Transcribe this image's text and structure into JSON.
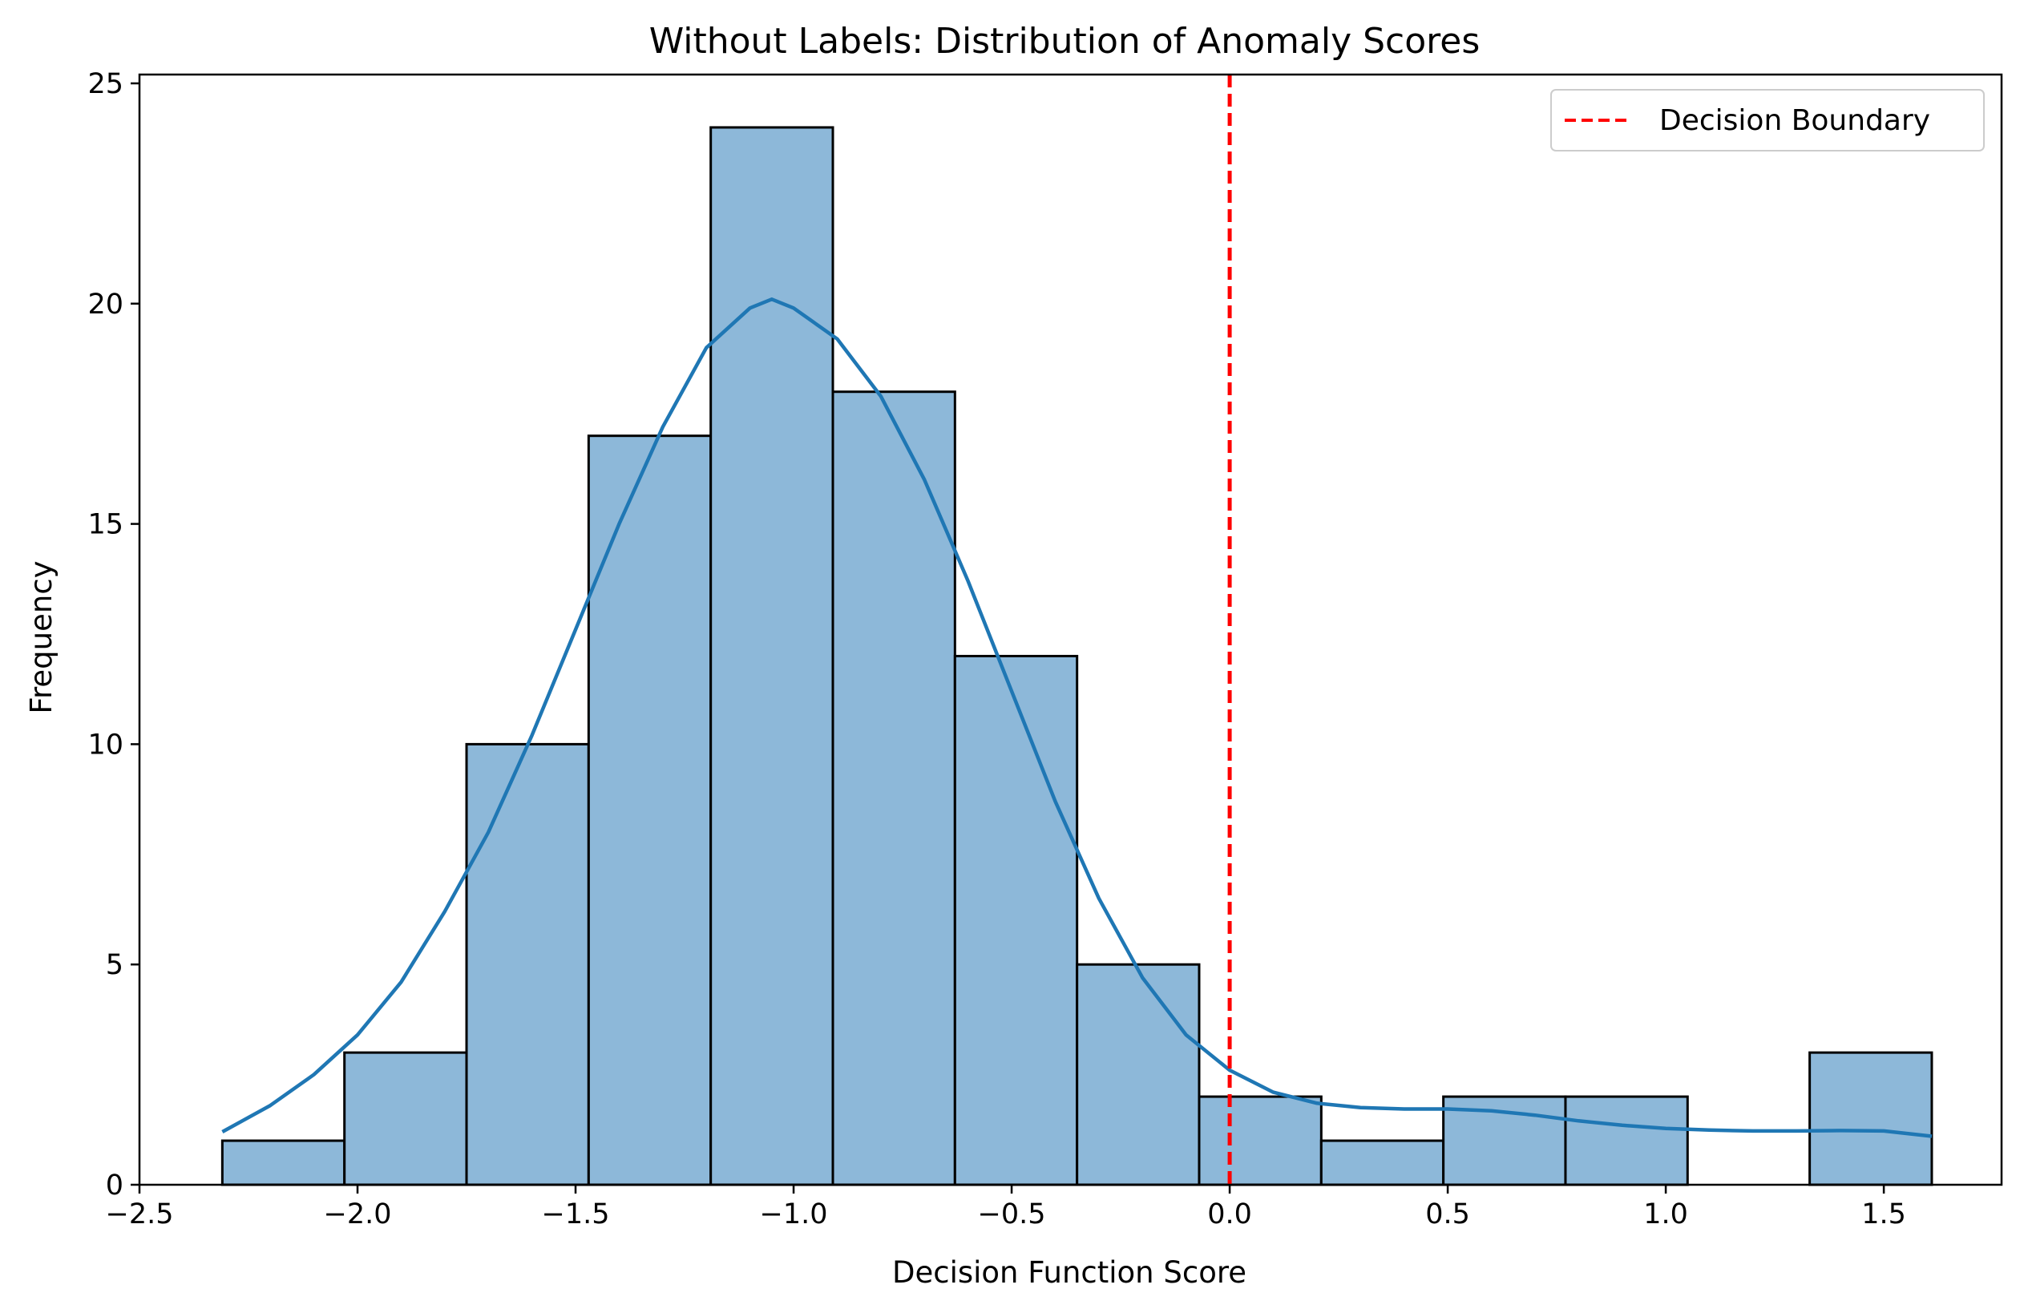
{
  "chart_data": {
    "type": "bar",
    "title": "Without Labels: Distribution of Anomaly Scores",
    "xlabel": "Decision Function Score",
    "ylabel": "Frequency",
    "xlim": [
      -2.5,
      1.77
    ],
    "ylim": [
      0,
      25.2
    ],
    "x_ticks": [
      -2.5,
      -2.0,
      -1.5,
      -1.0,
      -0.5,
      0.0,
      0.5,
      1.0,
      1.5
    ],
    "x_tick_labels": [
      "−2.5",
      "−2.0",
      "−1.5",
      "−1.0",
      "−0.5",
      "0.0",
      "0.5",
      "1.0",
      "1.5"
    ],
    "y_ticks": [
      0,
      5,
      10,
      15,
      20,
      25
    ],
    "y_tick_labels": [
      "0",
      "5",
      "10",
      "15",
      "20",
      "25"
    ],
    "grid": false,
    "bin_edges": [
      -2.31,
      -2.03,
      -1.75,
      -1.47,
      -1.19,
      -0.91,
      -0.63,
      -0.35,
      -0.07,
      0.21,
      0.49,
      0.77,
      1.05,
      1.33,
      1.61
    ],
    "counts": [
      1,
      3,
      10,
      17,
      24,
      18,
      12,
      5,
      2,
      1,
      2,
      2,
      0,
      3
    ],
    "bar_color": "#8db8d9",
    "bar_edge_color": "#000000",
    "kde": {
      "color": "#1f77b4",
      "x": [
        -2.31,
        -2.2,
        -2.1,
        -2.0,
        -1.9,
        -1.8,
        -1.7,
        -1.6,
        -1.5,
        -1.4,
        -1.3,
        -1.2,
        -1.1,
        -1.05,
        -1.0,
        -0.9,
        -0.8,
        -0.7,
        -0.6,
        -0.5,
        -0.4,
        -0.3,
        -0.2,
        -0.1,
        0.0,
        0.1,
        0.2,
        0.3,
        0.4,
        0.5,
        0.6,
        0.7,
        0.8,
        0.9,
        1.0,
        1.1,
        1.2,
        1.3,
        1.4,
        1.5,
        1.61
      ],
      "y": [
        1.2,
        1.8,
        2.5,
        3.4,
        4.6,
        6.2,
        8.0,
        10.2,
        12.6,
        15.0,
        17.2,
        19.0,
        19.9,
        20.1,
        19.9,
        19.2,
        17.9,
        16.0,
        13.7,
        11.2,
        8.7,
        6.5,
        4.7,
        3.4,
        2.6,
        2.1,
        1.85,
        1.75,
        1.72,
        1.72,
        1.68,
        1.58,
        1.45,
        1.35,
        1.28,
        1.24,
        1.22,
        1.22,
        1.23,
        1.22,
        1.1
      ]
    },
    "decision_boundary": {
      "x": 0.0,
      "color": "#ff0000",
      "style": "dashed",
      "label": "Decision Boundary"
    },
    "legend": {
      "placement": "top-right",
      "entries": [
        "Decision Boundary"
      ]
    }
  }
}
